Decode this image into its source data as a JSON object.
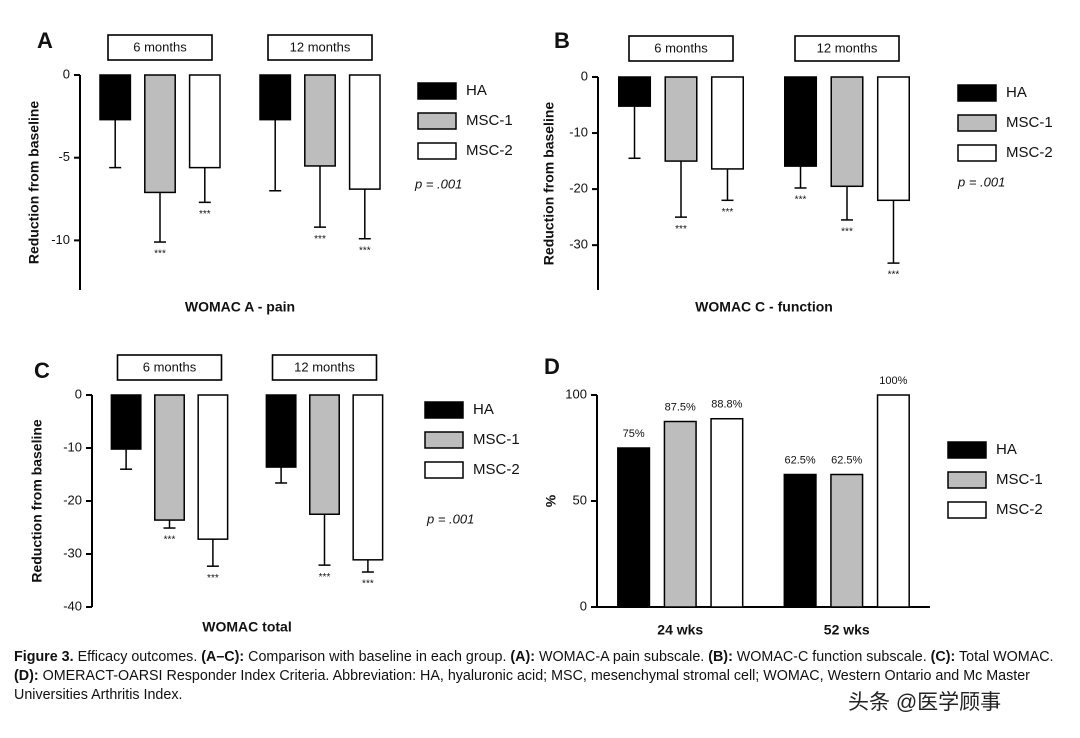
{
  "chart_data": [
    {
      "type": "bar",
      "panel_label": "A",
      "categories": [
        "6 months",
        "12 months"
      ],
      "y_label": "Reduction from baseline",
      "x_label": "WOMAC A - pain",
      "ylim": [
        -13,
        0
      ],
      "yticks": [
        0,
        -5,
        -10
      ],
      "annotation": "p = .001",
      "series": [
        {
          "name": "HA",
          "color": "#000000",
          "values": [
            -2.7,
            -2.7
          ],
          "errors": [
            2.9,
            4.3
          ],
          "significance": [
            null,
            null
          ]
        },
        {
          "name": "MSC-1",
          "color": "#bdbdbd",
          "values": [
            -7.1,
            -5.5
          ],
          "errors": [
            3.0,
            3.7
          ],
          "significance": [
            "***",
            "***"
          ]
        },
        {
          "name": "MSC-2",
          "color": "#ffffff",
          "values": [
            -5.6,
            -6.9
          ],
          "errors": [
            2.1,
            3.0
          ],
          "significance": [
            "***",
            "***"
          ]
        }
      ]
    },
    {
      "type": "bar",
      "panel_label": "B",
      "categories": [
        "6 months",
        "12 months"
      ],
      "y_label": "Reduction from baseline",
      "x_label": "WOMAC C - function",
      "ylim": [
        -38,
        0
      ],
      "yticks": [
        0,
        -10,
        -20,
        -30
      ],
      "annotation": "p = .001",
      "series": [
        {
          "name": "HA",
          "color": "#000000",
          "values": [
            -5.2,
            -15.9
          ],
          "errors": [
            9.3,
            3.9
          ],
          "significance": [
            null,
            "***"
          ]
        },
        {
          "name": "MSC-1",
          "color": "#bdbdbd",
          "values": [
            -15.0,
            -19.5
          ],
          "errors": [
            10.0,
            6.0
          ],
          "significance": [
            "***",
            "***"
          ]
        },
        {
          "name": "MSC-2",
          "color": "#ffffff",
          "values": [
            -16.4,
            -22.0
          ],
          "errors": [
            5.6,
            11.2
          ],
          "significance": [
            "***",
            "***"
          ]
        }
      ]
    },
    {
      "type": "bar",
      "panel_label": "C",
      "categories": [
        "6 months",
        "12 months"
      ],
      "y_label": "Reduction from baseline",
      "x_label": "WOMAC total",
      "ylim": [
        -40,
        0
      ],
      "yticks": [
        0,
        -10,
        -20,
        -30,
        -40
      ],
      "annotation": "p = .001",
      "series": [
        {
          "name": "HA",
          "color": "#000000",
          "values": [
            -10.2,
            -13.6
          ],
          "errors": [
            3.8,
            3.0
          ],
          "significance": [
            null,
            null
          ]
        },
        {
          "name": "MSC-1",
          "color": "#bdbdbd",
          "values": [
            -23.6,
            -22.5
          ],
          "errors": [
            1.5,
            9.6
          ],
          "significance": [
            "***",
            "***"
          ]
        },
        {
          "name": "MSC-2",
          "color": "#ffffff",
          "values": [
            -27.2,
            -31.1
          ],
          "errors": [
            5.1,
            2.3
          ],
          "significance": [
            "***",
            "***"
          ]
        }
      ]
    },
    {
      "type": "bar",
      "panel_label": "D",
      "categories": [
        "24 wks",
        "52 wks"
      ],
      "y_label": "%",
      "ylim": [
        0,
        100
      ],
      "yticks": [
        0,
        50,
        100
      ],
      "series": [
        {
          "name": "HA",
          "color": "#000000",
          "values": [
            75,
            62.5
          ],
          "value_labels": [
            "75%",
            "62.5%"
          ]
        },
        {
          "name": "MSC-1",
          "color": "#bdbdbd",
          "values": [
            87.5,
            62.5
          ],
          "value_labels": [
            "87.5%",
            "62.5%"
          ]
        },
        {
          "name": "MSC-2",
          "color": "#ffffff",
          "values": [
            88.8,
            100
          ],
          "value_labels": [
            "88.8%",
            "100%"
          ]
        }
      ]
    }
  ],
  "caption": [
    {
      "text": "Figure 3.",
      "bold": true
    },
    {
      "text": " Efficacy outcomes. ",
      "bold": false
    },
    {
      "text": "(A–C):",
      "bold": true
    },
    {
      "text": " Comparison with baseline in each group. ",
      "bold": false
    },
    {
      "text": "(A):",
      "bold": true
    },
    {
      "text": " WOMAC-A pain subscale. ",
      "bold": false
    },
    {
      "text": "(B):",
      "bold": true
    },
    {
      "text": " WOMAC-C function subscale. ",
      "bold": false
    },
    {
      "text": "(C):",
      "bold": true
    },
    {
      "text": " Total WOMAC. ",
      "bold": false
    },
    {
      "text": "(D):",
      "bold": true
    },
    {
      "text": " OMERACT-OARSI Responder Index Criteria. Abbreviation: HA, hyaluronic acid; MSC, mesenchymal stromal cell; WOMAC, Western Ontario and Mc Master Universities Arthritis Index.",
      "bold": false
    }
  ],
  "watermark": "头条 @医学顾事"
}
